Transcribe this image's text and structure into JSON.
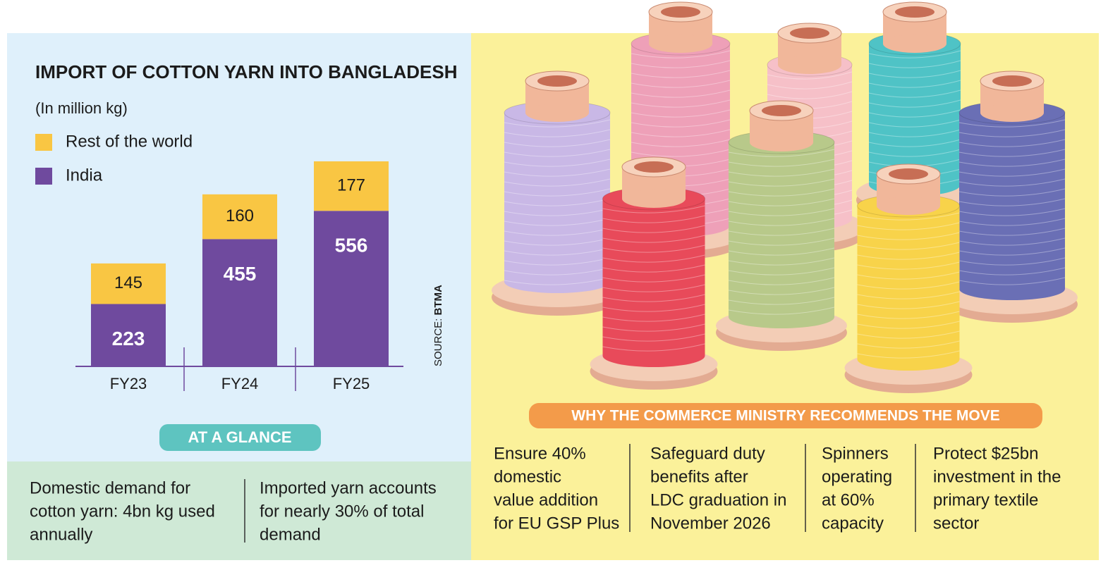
{
  "chart_data": {
    "type": "bar",
    "stacked": true,
    "title": "IMPORT OF COTTON YARN INTO BANGLADESH",
    "subtitle": "(In million kg)",
    "categories": [
      "FY23",
      "FY24",
      "FY25"
    ],
    "series": [
      {
        "name": "Rest of the world",
        "color": "#f9c643",
        "values": [
          145,
          160,
          177
        ]
      },
      {
        "name": "India",
        "color": "#6f4a9e",
        "values": [
          223,
          455,
          556
        ]
      }
    ],
    "source_label": "SOURCE:",
    "source": "BTMA"
  },
  "glance": {
    "title": "AT A GLANCE",
    "items": [
      {
        "lines": [
          "Domestic demand for",
          "cotton yarn: 4bn kg used",
          "annually"
        ]
      },
      {
        "lines": [
          "Imported yarn accounts",
          "for nearly 30% of total",
          "demand"
        ]
      }
    ]
  },
  "reasons": {
    "title": "WHY THE COMMERCE MINISTRY RECOMMENDS THE MOVE",
    "items": [
      {
        "lines": [
          "Ensure 40%",
          "domestic",
          "value addition",
          "for EU GSP Plus"
        ]
      },
      {
        "lines": [
          "Safeguard duty",
          "benefits after",
          "LDC graduation in",
          "November 2026"
        ]
      },
      {
        "lines": [
          "Spinners",
          "operating",
          "at 60%",
          "capacity"
        ]
      },
      {
        "lines": [
          "Protect $25bn",
          "investment in the",
          "primary textile",
          "sector"
        ]
      }
    ]
  }
}
